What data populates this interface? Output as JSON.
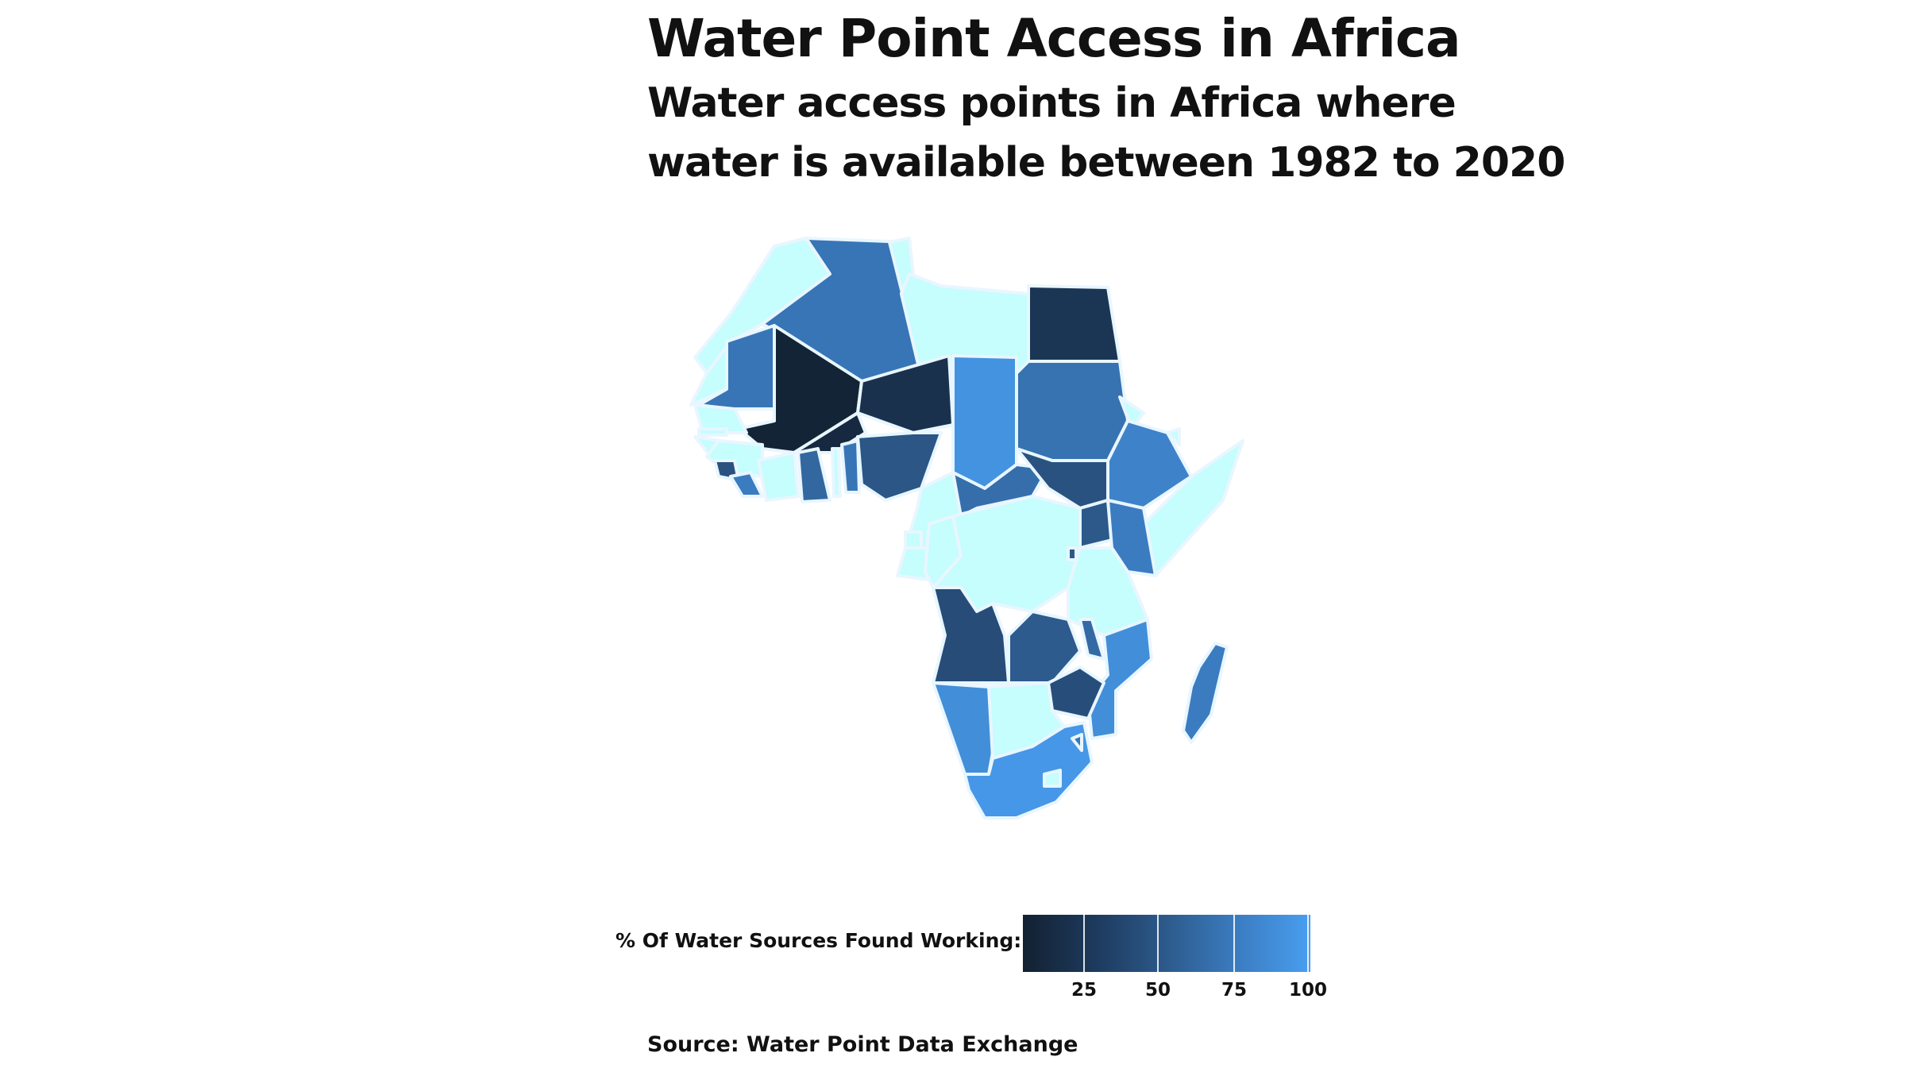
{
  "title": "Water Point Access in Africa",
  "subtitle_lines": [
    "Water access points in Africa where",
    "water is available between 1982 to 2020"
  ],
  "legend": {
    "title": "% Of Water Sources Found Working:",
    "ticks": [
      "25",
      "50",
      "75",
      "100"
    ],
    "range": [
      2,
      100
    ],
    "colors": [
      "#132132",
      "#1d3a5d",
      "#2d5a8c",
      "#3b7dc2",
      "#499ef0"
    ]
  },
  "no_data_color": "#c6fdfd",
  "border_color": "#e8f6ff",
  "caption": "Source: Water Point Data Exchange",
  "chart_data": {
    "type": "choropleth",
    "region": "Africa",
    "value_label": "% Of Water Sources Found Working",
    "series": [
      {
        "region": "Morocco",
        "value": null
      },
      {
        "region": "Western Sahara",
        "value": null
      },
      {
        "region": "Algeria",
        "value": 70
      },
      {
        "region": "Tunisia",
        "value": null
      },
      {
        "region": "Libya",
        "value": null
      },
      {
        "region": "Egypt",
        "value": 22
      },
      {
        "region": "Mauritania",
        "value": 70
      },
      {
        "region": "Mali",
        "value": 5
      },
      {
        "region": "Niger",
        "value": 18
      },
      {
        "region": "Chad",
        "value": 92
      },
      {
        "region": "Sudan",
        "value": 68
      },
      {
        "region": "Eritrea",
        "value": null
      },
      {
        "region": "Ethiopia",
        "value": 80
      },
      {
        "region": "Djibouti",
        "value": null
      },
      {
        "region": "Somalia",
        "value": null
      },
      {
        "region": "Senegal",
        "value": null
      },
      {
        "region": "Gambia",
        "value": null
      },
      {
        "region": "Guinea-Bissau",
        "value": null
      },
      {
        "region": "Guinea",
        "value": null
      },
      {
        "region": "Sierra Leone",
        "value": 45
      },
      {
        "region": "Liberia",
        "value": 75
      },
      {
        "region": "Cote d'Ivoire",
        "value": null
      },
      {
        "region": "Burkina Faso",
        "value": 10
      },
      {
        "region": "Ghana",
        "value": 60
      },
      {
        "region": "Togo",
        "value": null
      },
      {
        "region": "Benin",
        "value": 70
      },
      {
        "region": "Nigeria",
        "value": 48
      },
      {
        "region": "Cameroon",
        "value": null
      },
      {
        "region": "Central African Republic",
        "value": 65
      },
      {
        "region": "South Sudan",
        "value": 45
      },
      {
        "region": "Equatorial Guinea",
        "value": null
      },
      {
        "region": "Gabon",
        "value": null
      },
      {
        "region": "Republic of Congo",
        "value": null
      },
      {
        "region": "DR Congo",
        "value": null
      },
      {
        "region": "Uganda",
        "value": 50
      },
      {
        "region": "Kenya",
        "value": 75
      },
      {
        "region": "Rwanda",
        "value": 50
      },
      {
        "region": "Tanzania",
        "value": null
      },
      {
        "region": "Angola",
        "value": 40
      },
      {
        "region": "Zambia",
        "value": 52
      },
      {
        "region": "Malawi",
        "value": 62
      },
      {
        "region": "Mozambique",
        "value": 88
      },
      {
        "region": "Zimbabwe",
        "value": 42
      },
      {
        "region": "Namibia",
        "value": 88
      },
      {
        "region": "Botswana",
        "value": null
      },
      {
        "region": "South Africa",
        "value": 95
      },
      {
        "region": "Lesotho",
        "value": null
      },
      {
        "region": "Eswatini",
        "value": 70
      },
      {
        "region": "Madagascar",
        "value": 75
      }
    ]
  }
}
